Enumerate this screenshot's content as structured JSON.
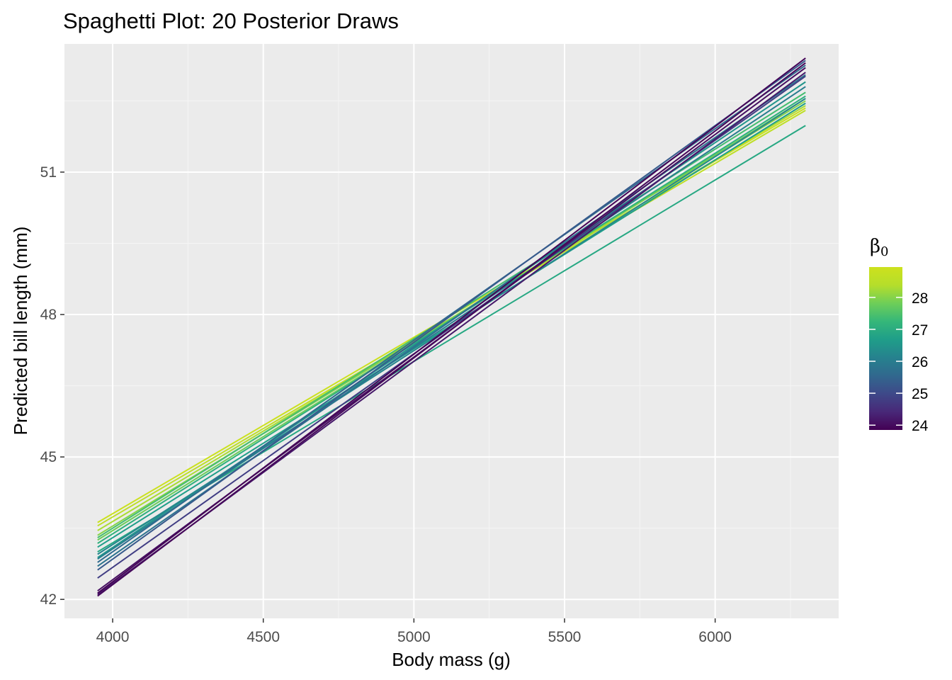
{
  "chart_data": {
    "type": "line",
    "title": "Spaghetti Plot: 20 Posterior Draws",
    "xlabel": "Body mass (g)",
    "ylabel": "Predicted bill length (mm)",
    "xlim": [
      3840,
      6410
    ],
    "ylim": [
      41.6,
      53.7
    ],
    "xticks": [
      4000,
      4500,
      5000,
      5500,
      6000
    ],
    "xtick_labels": [
      "4000",
      "4500",
      "5000",
      "5500",
      "6000"
    ],
    "yticks": [
      42,
      45,
      48,
      51
    ],
    "ytick_labels": [
      "42",
      "45",
      "48",
      "51"
    ],
    "grid": true,
    "panel_background": "#ebebeb",
    "legend": {
      "title_symbol": "β",
      "title_subscript": "0",
      "placement": "right",
      "ticks": [
        24,
        25,
        26,
        27,
        28
      ],
      "tick_labels": [
        "24",
        "25",
        "26",
        "27",
        "28"
      ],
      "range": [
        23.85,
        28.95
      ],
      "colormap": "viridis",
      "colors": [
        "#440154",
        "#482878",
        "#3e4989",
        "#31688e",
        "#26828e",
        "#1f9e89",
        "#35b779",
        "#6ece58",
        "#b5de2b",
        "#cde11d"
      ]
    },
    "x_range": [
      3950,
      6300
    ],
    "series": [
      {
        "b0": 23.9,
        "y": [
          42.13,
          53.4
        ]
      },
      {
        "b0": 23.95,
        "y": [
          42.07,
          53.3
        ]
      },
      {
        "b0": 24.05,
        "y": [
          42.18,
          53.2
        ]
      },
      {
        "b0": 24.2,
        "y": [
          42.1,
          53.1
        ]
      },
      {
        "b0": 24.8,
        "y": [
          42.45,
          53.02
        ]
      },
      {
        "b0": 25.3,
        "y": [
          42.62,
          53.35
        ]
      },
      {
        "b0": 25.6,
        "y": [
          42.78,
          53.25
        ]
      },
      {
        "b0": 25.8,
        "y": [
          42.7,
          53.05
        ]
      },
      {
        "b0": 26.0,
        "y": [
          42.85,
          52.8
        ]
      },
      {
        "b0": 26.2,
        "y": [
          42.95,
          52.55
        ]
      },
      {
        "b0": 26.5,
        "y": [
          42.88,
          52.9
        ]
      },
      {
        "b0": 26.7,
        "y": [
          43.1,
          52.45
        ]
      },
      {
        "b0": 26.9,
        "y": [
          43.0,
          51.98
        ]
      },
      {
        "b0": 27.1,
        "y": [
          43.18,
          52.6
        ]
      },
      {
        "b0": 27.4,
        "y": [
          43.3,
          52.68
        ]
      },
      {
        "b0": 27.8,
        "y": [
          43.25,
          52.55
        ]
      },
      {
        "b0": 28.0,
        "y": [
          43.35,
          52.5
        ]
      },
      {
        "b0": 28.3,
        "y": [
          43.45,
          52.4
        ]
      },
      {
        "b0": 28.6,
        "y": [
          43.55,
          52.3
        ]
      },
      {
        "b0": 28.9,
        "y": [
          43.62,
          52.35
        ]
      }
    ]
  }
}
